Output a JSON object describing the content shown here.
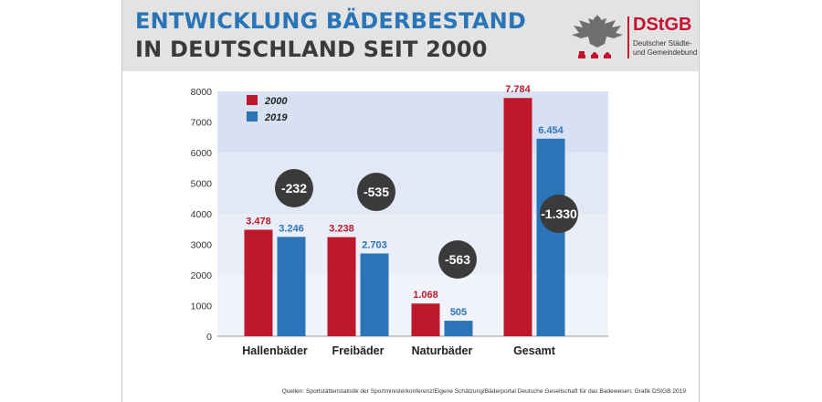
{
  "header": {
    "title_line1": "ENTWICKLUNG BÄDERBESTAND",
    "title_line2": "IN DEUTSCHLAND SEIT 2000"
  },
  "logo": {
    "name": "DStGB",
    "subtitle_line1": "Deutscher Städte-",
    "subtitle_line2": "und Gemeindebund",
    "icon": "eagle-emblem-icon"
  },
  "chart_data": {
    "type": "bar",
    "categories": [
      "Hallenbäder",
      "Freibäder",
      "Naturbäder",
      "Gesamt"
    ],
    "series": [
      {
        "name": "2000",
        "values": [
          3478,
          3238,
          1068,
          7784
        ],
        "labels": [
          "3.478",
          "3.238",
          "1.068",
          "7.784"
        ],
        "color": "#c0182b"
      },
      {
        "name": "2019",
        "values": [
          3246,
          2703,
          505,
          6454
        ],
        "labels": [
          "3.246",
          "2.703",
          "505",
          "6.454"
        ],
        "color": "#2b74b8"
      }
    ],
    "differences": [
      "-232",
      "-535",
      "-563",
      "-1.330"
    ],
    "y_ticks": [
      "0",
      "1000",
      "2000",
      "3000",
      "4000",
      "5000",
      "6000",
      "7000",
      "8000"
    ],
    "ylim": [
      0,
      8000
    ],
    "legend_position": "top-left",
    "grid": true
  },
  "source": "Quellen: Sportstättenstatistik der Sportministerkonferenz/Eigene Schätzung/Bäderportal Deutsche Gesellschaft für das Badewesen; Grafik DStGB 2019"
}
